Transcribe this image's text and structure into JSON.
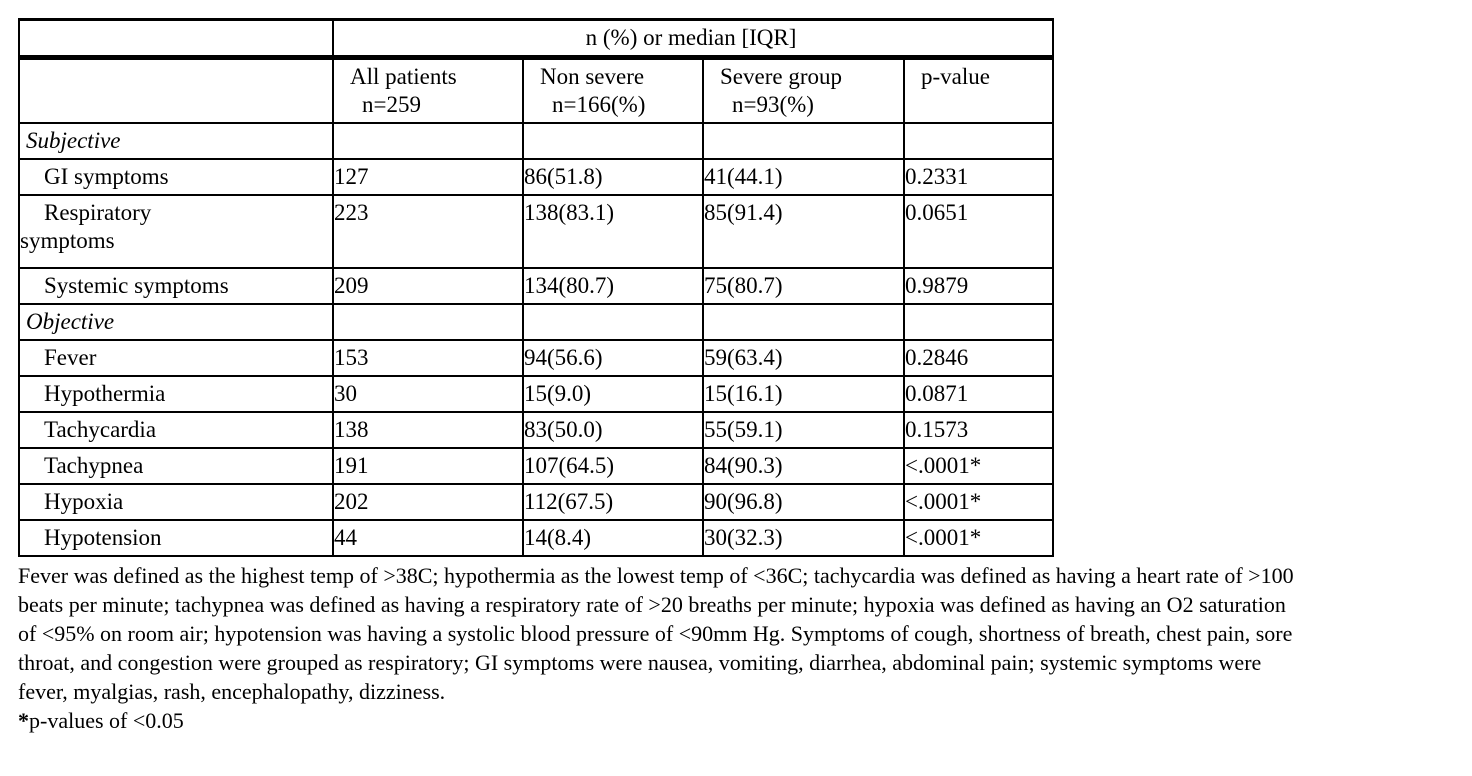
{
  "table": {
    "span_header": "n (%) or median [IQR]",
    "corner": "",
    "columns": [
      {
        "lines": [
          "All patients",
          "n=259"
        ]
      },
      {
        "lines": [
          "Non severe",
          "n=166(%)"
        ]
      },
      {
        "lines": [
          "Severe group",
          "n=93(%)"
        ]
      },
      {
        "lines": [
          "p-value"
        ]
      }
    ],
    "sections": [
      {
        "label": "Subjective",
        "rows": [
          {
            "label_lines": [
              "GI symptoms"
            ],
            "values": [
              "127",
              "86(51.8)",
              "41(44.1)",
              "0.2331"
            ],
            "tall": false
          },
          {
            "label_lines": [
              "Respiratory",
              "symptoms"
            ],
            "values": [
              "223",
              "138(83.1)",
              "85(91.4)",
              "0.0651"
            ],
            "tall": true
          },
          {
            "label_lines": [
              "Systemic symptoms"
            ],
            "values": [
              "209",
              "134(80.7)",
              "75(80.7)",
              "0.9879"
            ],
            "tall": false
          }
        ]
      },
      {
        "label": "Objective",
        "rows": [
          {
            "label_lines": [
              "Fever"
            ],
            "values": [
              "153",
              "94(56.6)",
              "59(63.4)",
              "0.2846"
            ],
            "tall": false
          },
          {
            "label_lines": [
              "Hypothermia"
            ],
            "values": [
              "30",
              "15(9.0)",
              "15(16.1)",
              "0.0871"
            ],
            "tall": false
          },
          {
            "label_lines": [
              "Tachycardia"
            ],
            "values": [
              "138",
              "83(50.0)",
              "55(59.1)",
              "0.1573"
            ],
            "tall": false
          },
          {
            "label_lines": [
              "Tachypnea"
            ],
            "values": [
              "191",
              "107(64.5)",
              "84(90.3)",
              "<.0001*"
            ],
            "tall": false
          },
          {
            "label_lines": [
              "Hypoxia"
            ],
            "values": [
              "202",
              "112(67.5)",
              "90(96.8)",
              "<.0001*"
            ],
            "tall": false
          },
          {
            "label_lines": [
              "Hypotension"
            ],
            "values": [
              "44",
              "14(8.4)",
              "30(32.3)",
              "<.0001*"
            ],
            "tall": false
          }
        ]
      }
    ]
  },
  "footnote": {
    "lines": [
      "Fever was defined as the highest temp of >38C; hypothermia as the lowest temp of <36C; tachycardia was defined as having a heart rate of >100",
      "beats per minute; tachypnea was defined as having a respiratory rate of >20 breaths per minute; hypoxia was defined as having an O2 saturation",
      "of <95% on room air; hypotension was having a systolic blood pressure of <90mm Hg. Symptoms of cough, shortness of breath, chest pain, sore",
      "throat, and congestion were grouped as respiratory; GI symptoms were nausea, vomiting, diarrhea, abdominal pain; systemic symptoms were",
      "fever, myalgias, rash, encephalopathy, dizziness."
    ],
    "significance_star": "*",
    "significance_text": "p-values of <0.05"
  }
}
